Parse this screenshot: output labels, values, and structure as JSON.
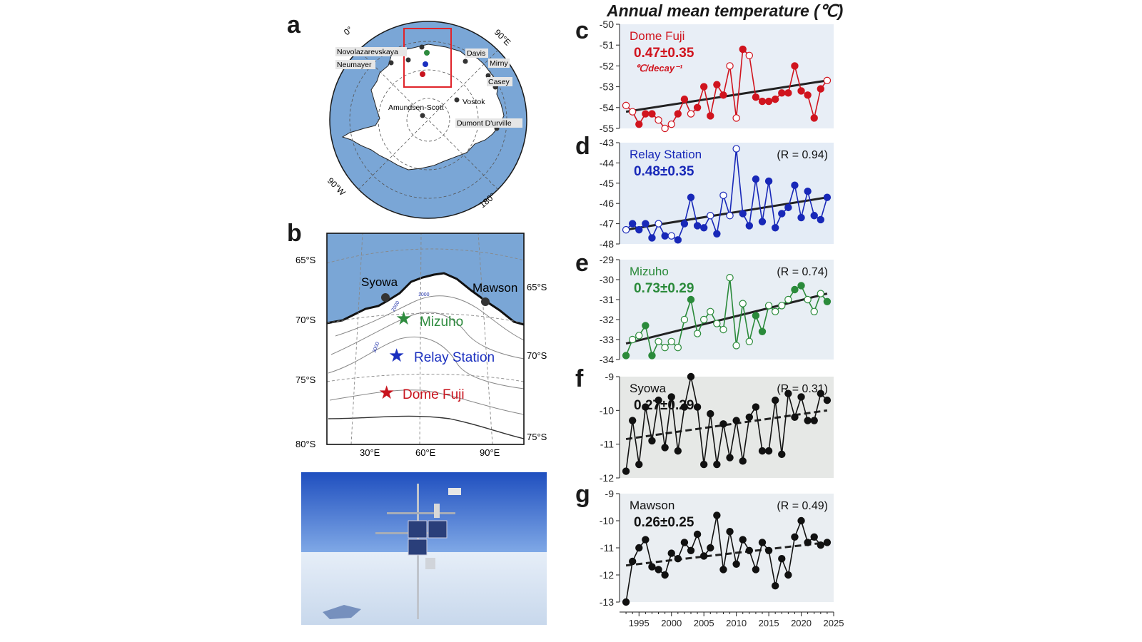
{
  "figure": {
    "title": "Annual mean temperature (℃)",
    "panel_labels": {
      "a": "a",
      "b": "b",
      "c": "c",
      "d": "d",
      "e": "e",
      "f": "f",
      "g": "g"
    }
  },
  "map_a": {
    "longitude_labels": [
      "0°",
      "90°E",
      "90°W",
      "180°"
    ],
    "stations": [
      "Novolazarevskaya",
      "Neumayer",
      "Davis",
      "Mirny",
      "Casey",
      "Vostok",
      "Amundsen-Scott",
      "Dumont D'urville"
    ],
    "colors": {
      "ocean": "#7aa6d6",
      "land": "#ffffff",
      "box": "#e0242a"
    }
  },
  "map_b": {
    "lat_labels_left": [
      "65°S",
      "70°S",
      "75°S",
      "80°S"
    ],
    "lat_labels_right": [
      "65°S",
      "70°S",
      "75°S"
    ],
    "lon_labels": [
      "30°E",
      "60°E",
      "90°E"
    ],
    "coastal_stations": [
      "Syowa",
      "Mawson"
    ],
    "inland_stations": [
      {
        "name": "Mizuho",
        "color": "#2e8b3e"
      },
      {
        "name": "Relay Station",
        "color": "#1a2fbf"
      },
      {
        "name": "Dome Fuji",
        "color": "#c8141e"
      }
    ],
    "contour_labels": [
      "1000",
      "2000",
      "3000"
    ]
  },
  "photo": {
    "description": "automatic-weather-station"
  },
  "chart_data": [
    {
      "type": "line",
      "panel": "c",
      "series_name": "Dome Fuji",
      "trend_text": "0.47±0.35",
      "trend_unit": "℃/decay⁻¹",
      "r_text": "",
      "color": "#d0141e",
      "x": [
        1993,
        1994,
        1995,
        1996,
        1997,
        1998,
        1999,
        2000,
        2001,
        2002,
        2003,
        2004,
        2005,
        2006,
        2007,
        2008,
        2009,
        2010,
        2011,
        2012,
        2013,
        2014,
        2015,
        2016,
        2017,
        2018,
        2019,
        2020,
        2021,
        2022,
        2023,
        2024
      ],
      "values": [
        -53.9,
        -54.2,
        -54.8,
        -54.3,
        -54.3,
        -54.6,
        -55.0,
        -54.8,
        -54.3,
        -53.6,
        -54.3,
        -54.0,
        -53.0,
        -54.4,
        -52.9,
        -53.4,
        -52.0,
        -54.5,
        -51.2,
        -51.5,
        -53.5,
        -53.7,
        -53.7,
        -53.6,
        -53.3,
        -53.3,
        -52.0,
        -53.2,
        -53.4,
        -54.5,
        -53.1,
        -52.7
      ],
      "filled": [
        false,
        false,
        true,
        true,
        true,
        false,
        false,
        false,
        true,
        true,
        false,
        true,
        true,
        true,
        true,
        true,
        false,
        false,
        true,
        false,
        true,
        true,
        true,
        true,
        true,
        true,
        true,
        true,
        true,
        true,
        true,
        false
      ],
      "trend": [
        -54.2,
        -52.7
      ],
      "ylim": [
        -55,
        -50
      ],
      "yticks": [
        -50,
        -51,
        -52,
        -53,
        -54,
        -55
      ],
      "dashed": false
    },
    {
      "type": "line",
      "panel": "d",
      "series_name": "Relay Station",
      "trend_text": "0.48±0.35",
      "trend_unit": "",
      "r_text": "(R = 0.94)",
      "color": "#1828b8",
      "x": [
        1993,
        1994,
        1995,
        1996,
        1997,
        1998,
        1999,
        2000,
        2001,
        2002,
        2003,
        2004,
        2005,
        2006,
        2007,
        2008,
        2009,
        2010,
        2011,
        2012,
        2013,
        2014,
        2015,
        2016,
        2017,
        2018,
        2019,
        2020,
        2021,
        2022,
        2023,
        2024
      ],
      "values": [
        -47.3,
        -47.0,
        -47.3,
        -47.0,
        -47.7,
        -47.0,
        -47.6,
        -47.6,
        -47.8,
        -47.0,
        -45.7,
        -47.1,
        -47.2,
        -46.6,
        -47.5,
        -45.6,
        -46.6,
        -43.3,
        -46.5,
        -47.1,
        -44.8,
        -46.9,
        -44.9,
        -47.2,
        -46.5,
        -46.2,
        -45.1,
        -46.7,
        -45.4,
        -46.6,
        -46.8,
        -45.7
      ],
      "filled": [
        false,
        true,
        true,
        true,
        true,
        false,
        true,
        false,
        true,
        true,
        true,
        true,
        true,
        false,
        true,
        false,
        false,
        false,
        true,
        true,
        true,
        true,
        true,
        true,
        true,
        true,
        true,
        true,
        true,
        true,
        true,
        true
      ],
      "trend": [
        -47.3,
        -45.7
      ],
      "ylim": [
        -48,
        -43
      ],
      "yticks": [
        -43,
        -44,
        -45,
        -46,
        -47,
        -48
      ],
      "dashed": false
    },
    {
      "type": "line",
      "panel": "e",
      "series_name": "Mizuho",
      "trend_text": "0.73±0.29",
      "trend_unit": "",
      "r_text": "(R = 0.74)",
      "color": "#2a8a3a",
      "x": [
        1993,
        1994,
        1995,
        1996,
        1997,
        1998,
        1999,
        2000,
        2001,
        2002,
        2003,
        2004,
        2005,
        2006,
        2007,
        2008,
        2009,
        2010,
        2011,
        2012,
        2013,
        2014,
        2015,
        2016,
        2017,
        2018,
        2019,
        2020,
        2021,
        2022,
        2023,
        2024
      ],
      "values": [
        -33.8,
        -33.0,
        -32.8,
        -32.3,
        -33.8,
        -33.1,
        -33.4,
        -33.1,
        -33.4,
        -32.0,
        -31.0,
        -32.7,
        -32.0,
        -31.6,
        -32.2,
        -32.5,
        -29.9,
        -33.3,
        -31.2,
        -33.1,
        -31.8,
        -32.6,
        -31.3,
        -31.6,
        -31.3,
        -31.0,
        -30.5,
        -30.3,
        -31.0,
        -31.6,
        -30.7,
        -31.1
      ],
      "filled": [
        true,
        false,
        false,
        true,
        true,
        false,
        false,
        false,
        false,
        false,
        true,
        false,
        false,
        false,
        false,
        false,
        false,
        false,
        false,
        false,
        true,
        true,
        false,
        false,
        false,
        false,
        true,
        true,
        false,
        false,
        false,
        true
      ],
      "trend": [
        -33.2,
        -30.7
      ],
      "ylim": [
        -34,
        -29
      ],
      "yticks": [
        -29,
        -30,
        -31,
        -32,
        -33,
        -34
      ],
      "dashed": false
    },
    {
      "type": "line",
      "panel": "f",
      "series_name": "Syowa",
      "trend_text": "0.27±0.29",
      "trend_unit": "",
      "r_text": "(R = 0.31)",
      "color": "#111111",
      "x": [
        1993,
        1994,
        1995,
        1996,
        1997,
        1998,
        1999,
        2000,
        2001,
        2002,
        2003,
        2004,
        2005,
        2006,
        2007,
        2008,
        2009,
        2010,
        2011,
        2012,
        2013,
        2014,
        2015,
        2016,
        2017,
        2018,
        2019,
        2020,
        2021,
        2022,
        2023,
        2024
      ],
      "values": [
        -11.8,
        -10.3,
        -11.6,
        -9.9,
        -10.9,
        -9.7,
        -11.1,
        -9.6,
        -11.2,
        -9.9,
        -9.0,
        -9.9,
        -11.6,
        -10.1,
        -11.6,
        -10.4,
        -11.4,
        -10.3,
        -11.5,
        -10.2,
        -9.9,
        -11.2,
        -11.2,
        -9.7,
        -11.3,
        -9.5,
        -10.2,
        -9.6,
        -10.3,
        -10.3,
        -9.5,
        -9.7
      ],
      "filled": [
        true,
        true,
        true,
        true,
        true,
        true,
        true,
        true,
        true,
        true,
        true,
        true,
        true,
        true,
        true,
        true,
        true,
        true,
        true,
        true,
        true,
        true,
        true,
        true,
        true,
        true,
        true,
        true,
        true,
        true,
        true,
        true
      ],
      "trend": [
        -10.85,
        -10.0
      ],
      "ylim": [
        -12,
        -9
      ],
      "yticks": [
        -9,
        -10,
        -11,
        -12
      ],
      "dashed": true
    },
    {
      "type": "line",
      "panel": "g",
      "series_name": "Mawson",
      "trend_text": "0.26±0.25",
      "trend_unit": "",
      "r_text": "(R = 0.49)",
      "color": "#111111",
      "x": [
        1993,
        1994,
        1995,
        1996,
        1997,
        1998,
        1999,
        2000,
        2001,
        2002,
        2003,
        2004,
        2005,
        2006,
        2007,
        2008,
        2009,
        2010,
        2011,
        2012,
        2013,
        2014,
        2015,
        2016,
        2017,
        2018,
        2019,
        2020,
        2021,
        2022,
        2023,
        2024
      ],
      "values": [
        -13.0,
        -11.5,
        -11.0,
        -10.7,
        -11.7,
        -11.8,
        -12.0,
        -11.2,
        -11.4,
        -10.8,
        -11.1,
        -10.5,
        -11.3,
        -11.0,
        -9.8,
        -11.8,
        -10.4,
        -11.6,
        -10.7,
        -11.1,
        -11.8,
        -10.8,
        -11.1,
        -12.4,
        -11.4,
        -12.0,
        -10.6,
        -10.0,
        -10.8,
        -10.6,
        -10.9,
        -10.8
      ],
      "filled": [
        true,
        true,
        true,
        true,
        true,
        true,
        true,
        true,
        true,
        true,
        true,
        true,
        true,
        true,
        true,
        true,
        true,
        true,
        true,
        true,
        true,
        true,
        true,
        true,
        true,
        true,
        true,
        true,
        true,
        true,
        true,
        true
      ],
      "trend": [
        -11.65,
        -10.8
      ],
      "ylim": [
        -13,
        -9
      ],
      "yticks": [
        -9,
        -10,
        -11,
        -12,
        -13
      ],
      "dashed": true
    }
  ],
  "x_axis": {
    "xlim": [
      1992,
      2025
    ],
    "ticks": [
      1995,
      2000,
      2005,
      2010,
      2015,
      2020,
      2025
    ]
  }
}
